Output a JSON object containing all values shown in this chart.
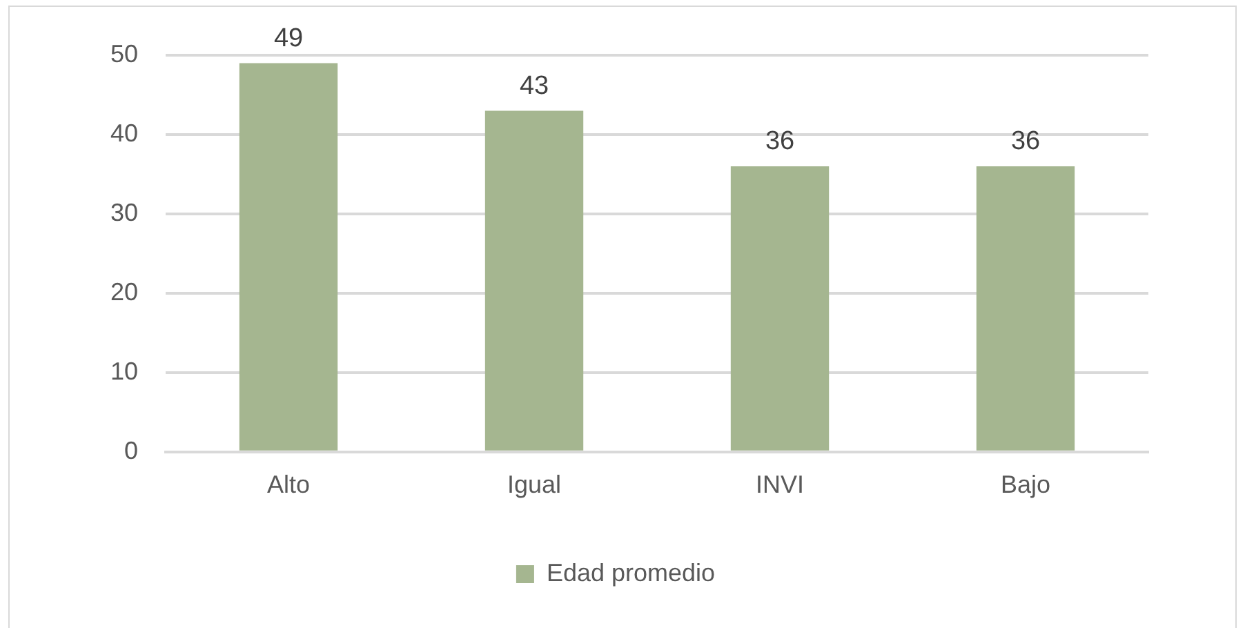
{
  "chart_data": {
    "type": "bar",
    "categories": [
      "Alto",
      "Igual",
      "INVI",
      "Bajo"
    ],
    "series": [
      {
        "name": "Edad promedio",
        "color": "#a5b690",
        "values": [
          49,
          43,
          36,
          36
        ]
      }
    ],
    "ylim": [
      0,
      50
    ],
    "yticks": [
      0,
      10,
      20,
      30,
      40,
      50
    ],
    "grid": "y",
    "legend": "bottom",
    "data_labels": true
  }
}
